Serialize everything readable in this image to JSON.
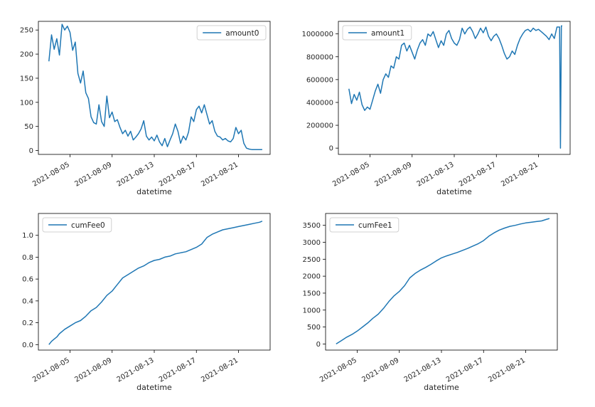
{
  "figure": {
    "background": "#ffffff",
    "line_color": "#1f77b4"
  },
  "chart_data": [
    {
      "type": "line",
      "title": "",
      "xlabel": "datetime",
      "ylabel": "",
      "x_ticks": [
        "2021-08-05",
        "2021-08-09",
        "2021-08-13",
        "2021-08-17",
        "2021-08-21"
      ],
      "x_range": [
        "2021-08-02",
        "2021-08-24"
      ],
      "ylim": [
        -8,
        268
      ],
      "y_ticks": [
        0,
        50,
        100,
        150,
        200,
        250
      ],
      "y_tick_labels": [
        "0",
        "50",
        "100",
        "150",
        "200",
        "250"
      ],
      "legend": {
        "position": "top-right",
        "entries": [
          "amount0"
        ]
      },
      "grid": false,
      "series": [
        {
          "name": "amount0",
          "x": [
            "2021-08-03",
            "2021-08-03T06",
            "2021-08-03T12",
            "2021-08-03T18",
            "2021-08-04",
            "2021-08-04T06",
            "2021-08-04T12",
            "2021-08-04T18",
            "2021-08-05",
            "2021-08-05T06",
            "2021-08-05T12",
            "2021-08-05T18",
            "2021-08-06",
            "2021-08-06T06",
            "2021-08-06T12",
            "2021-08-06T18",
            "2021-08-07",
            "2021-08-07T06",
            "2021-08-07T12",
            "2021-08-07T18",
            "2021-08-08",
            "2021-08-08T06",
            "2021-08-08T12",
            "2021-08-08T18",
            "2021-08-09",
            "2021-08-09T06",
            "2021-08-09T12",
            "2021-08-09T18",
            "2021-08-10",
            "2021-08-10T06",
            "2021-08-10T12",
            "2021-08-10T18",
            "2021-08-11",
            "2021-08-11T06",
            "2021-08-11T12",
            "2021-08-11T18",
            "2021-08-12",
            "2021-08-12T06",
            "2021-08-12T12",
            "2021-08-12T18",
            "2021-08-13",
            "2021-08-13T06",
            "2021-08-13T12",
            "2021-08-13T18",
            "2021-08-14",
            "2021-08-14T06",
            "2021-08-14T12",
            "2021-08-14T18",
            "2021-08-15",
            "2021-08-15T06",
            "2021-08-15T12",
            "2021-08-15T18",
            "2021-08-16",
            "2021-08-16T06",
            "2021-08-16T12",
            "2021-08-16T18",
            "2021-08-17",
            "2021-08-17T06",
            "2021-08-17T12",
            "2021-08-17T18",
            "2021-08-18",
            "2021-08-18T06",
            "2021-08-18T12",
            "2021-08-18T18",
            "2021-08-19",
            "2021-08-19T06",
            "2021-08-19T12",
            "2021-08-19T18",
            "2021-08-20",
            "2021-08-20T06",
            "2021-08-20T12",
            "2021-08-20T18",
            "2021-08-21",
            "2021-08-21T06",
            "2021-08-21T12",
            "2021-08-21T18",
            "2021-08-22",
            "2021-08-22T06",
            "2021-08-22T12",
            "2021-08-22T18",
            "2021-08-23",
            "2021-08-23T06"
          ],
          "y": [
            185,
            240,
            210,
            232,
            198,
            262,
            250,
            258,
            245,
            208,
            225,
            160,
            140,
            165,
            120,
            108,
            70,
            58,
            55,
            95,
            60,
            50,
            113,
            68,
            80,
            60,
            64,
            48,
            35,
            42,
            30,
            40,
            22,
            28,
            35,
            45,
            62,
            30,
            22,
            28,
            20,
            32,
            18,
            10,
            25,
            8,
            22,
            35,
            55,
            40,
            15,
            30,
            22,
            38,
            70,
            60,
            85,
            92,
            78,
            95,
            75,
            55,
            62,
            40,
            30,
            28,
            22,
            25,
            20,
            18,
            25,
            48,
            35,
            42,
            15,
            5,
            3,
            2,
            2,
            2,
            2,
            2
          ]
        }
      ]
    },
    {
      "type": "line",
      "title": "",
      "xlabel": "datetime",
      "ylabel": "",
      "x_ticks": [
        "2021-08-05",
        "2021-08-09",
        "2021-08-13",
        "2021-08-17",
        "2021-08-21"
      ],
      "x_range": [
        "2021-08-02",
        "2021-08-24"
      ],
      "ylim": [
        -55000,
        1110000
      ],
      "y_ticks": [
        0,
        200000,
        400000,
        600000,
        800000,
        1000000
      ],
      "y_tick_labels": [
        "0",
        "200000",
        "400000",
        "600000",
        "800000",
        "1000000"
      ],
      "legend": {
        "position": "top-left",
        "entries": [
          "amount1"
        ]
      },
      "grid": false,
      "series": [
        {
          "name": "amount1",
          "x": [
            "2021-08-03",
            "2021-08-03T06",
            "2021-08-03T12",
            "2021-08-03T18",
            "2021-08-04",
            "2021-08-04T06",
            "2021-08-04T12",
            "2021-08-04T18",
            "2021-08-05",
            "2021-08-05T06",
            "2021-08-05T12",
            "2021-08-05T18",
            "2021-08-06",
            "2021-08-06T06",
            "2021-08-06T12",
            "2021-08-06T18",
            "2021-08-07",
            "2021-08-07T06",
            "2021-08-07T12",
            "2021-08-07T18",
            "2021-08-08",
            "2021-08-08T06",
            "2021-08-08T12",
            "2021-08-08T18",
            "2021-08-09",
            "2021-08-09T06",
            "2021-08-09T12",
            "2021-08-09T18",
            "2021-08-10",
            "2021-08-10T06",
            "2021-08-10T12",
            "2021-08-10T18",
            "2021-08-11",
            "2021-08-11T06",
            "2021-08-11T12",
            "2021-08-11T18",
            "2021-08-12",
            "2021-08-12T06",
            "2021-08-12T12",
            "2021-08-12T18",
            "2021-08-13",
            "2021-08-13T06",
            "2021-08-13T12",
            "2021-08-13T18",
            "2021-08-14",
            "2021-08-14T06",
            "2021-08-14T12",
            "2021-08-14T18",
            "2021-08-15",
            "2021-08-15T06",
            "2021-08-15T12",
            "2021-08-15T18",
            "2021-08-16",
            "2021-08-16T06",
            "2021-08-16T12",
            "2021-08-16T18",
            "2021-08-17",
            "2021-08-17T06",
            "2021-08-17T12",
            "2021-08-17T18",
            "2021-08-18",
            "2021-08-18T06",
            "2021-08-18T12",
            "2021-08-18T18",
            "2021-08-19",
            "2021-08-19T06",
            "2021-08-19T12",
            "2021-08-19T18",
            "2021-08-20",
            "2021-08-20T06",
            "2021-08-20T12",
            "2021-08-20T18",
            "2021-08-21",
            "2021-08-21T06",
            "2021-08-21T12",
            "2021-08-21T18",
            "2021-08-22",
            "2021-08-22T06",
            "2021-08-22T12",
            "2021-08-22T18",
            "2021-08-23",
            "2021-08-23T02",
            "2021-08-23T04",
            "2021-08-23T05",
            "2021-08-23T06"
          ],
          "y": [
            520000,
            390000,
            470000,
            420000,
            490000,
            380000,
            330000,
            360000,
            340000,
            420000,
            500000,
            560000,
            480000,
            600000,
            650000,
            620000,
            720000,
            700000,
            800000,
            780000,
            900000,
            920000,
            850000,
            900000,
            840000,
            780000,
            860000,
            920000,
            950000,
            900000,
            1000000,
            980000,
            1020000,
            950000,
            880000,
            940000,
            900000,
            1000000,
            1030000,
            960000,
            920000,
            900000,
            950000,
            1050000,
            1000000,
            1040000,
            1060000,
            1020000,
            960000,
            1000000,
            1050000,
            1010000,
            1060000,
            980000,
            940000,
            980000,
            1000000,
            960000,
            900000,
            830000,
            780000,
            800000,
            850000,
            820000,
            900000,
            960000,
            1000000,
            1030000,
            1040000,
            1020000,
            1050000,
            1030000,
            1040000,
            1020000,
            1000000,
            980000,
            950000,
            1000000,
            960000,
            1060000,
            1060000,
            0,
            1070000,
            1070000,
            1070000
          ]
        }
      ]
    },
    {
      "type": "line",
      "title": "",
      "xlabel": "datetime",
      "ylabel": "",
      "x_ticks": [
        "2021-08-05",
        "2021-08-09",
        "2021-08-13",
        "2021-08-17",
        "2021-08-21"
      ],
      "x_range": [
        "2021-08-02",
        "2021-08-24"
      ],
      "ylim": [
        -0.05,
        1.2
      ],
      "y_ticks": [
        0.0,
        0.2,
        0.4,
        0.6,
        0.8,
        1.0
      ],
      "y_tick_labels": [
        "0.0",
        "0.2",
        "0.4",
        "0.6",
        "0.8",
        "1.0"
      ],
      "legend": {
        "position": "top-left",
        "entries": [
          "cumFee0"
        ]
      },
      "grid": false,
      "series": [
        {
          "name": "cumFee0",
          "x": [
            "2021-08-03",
            "2021-08-03T06",
            "2021-08-03T12",
            "2021-08-03T18",
            "2021-08-04",
            "2021-08-04T12",
            "2021-08-05",
            "2021-08-05T12",
            "2021-08-06",
            "2021-08-06T12",
            "2021-08-07",
            "2021-08-07T12",
            "2021-08-08",
            "2021-08-08T12",
            "2021-08-09",
            "2021-08-09T12",
            "2021-08-10",
            "2021-08-10T12",
            "2021-08-11",
            "2021-08-11T12",
            "2021-08-12",
            "2021-08-12T12",
            "2021-08-13",
            "2021-08-13T12",
            "2021-08-14",
            "2021-08-14T12",
            "2021-08-15",
            "2021-08-15T12",
            "2021-08-16",
            "2021-08-16T12",
            "2021-08-17",
            "2021-08-17T12",
            "2021-08-18",
            "2021-08-18T12",
            "2021-08-19",
            "2021-08-19T12",
            "2021-08-20",
            "2021-08-20T12",
            "2021-08-21",
            "2021-08-21T12",
            "2021-08-22",
            "2021-08-22T12",
            "2021-08-23",
            "2021-08-23T06"
          ],
          "y": [
            0.0,
            0.03,
            0.05,
            0.07,
            0.1,
            0.14,
            0.17,
            0.2,
            0.22,
            0.26,
            0.31,
            0.34,
            0.39,
            0.45,
            0.49,
            0.55,
            0.61,
            0.64,
            0.67,
            0.7,
            0.72,
            0.75,
            0.77,
            0.78,
            0.8,
            0.81,
            0.83,
            0.84,
            0.85,
            0.87,
            0.89,
            0.92,
            0.98,
            1.01,
            1.03,
            1.05,
            1.06,
            1.07,
            1.08,
            1.09,
            1.1,
            1.11,
            1.12,
            1.13
          ]
        }
      ]
    },
    {
      "type": "line",
      "title": "",
      "xlabel": "datetime",
      "ylabel": "",
      "x_ticks": [
        "2021-08-05",
        "2021-08-09",
        "2021-08-13",
        "2021-08-17",
        "2021-08-21"
      ],
      "x_range": [
        "2021-08-02",
        "2021-08-24"
      ],
      "ylim": [
        -180,
        3850
      ],
      "y_ticks": [
        0,
        500,
        1000,
        1500,
        2000,
        2500,
        3000,
        3500
      ],
      "y_tick_labels": [
        "0",
        "500",
        "1000",
        "1500",
        "2000",
        "2500",
        "3000",
        "3500"
      ],
      "legend": {
        "position": "top-left",
        "entries": [
          "cumFee1"
        ]
      },
      "grid": false,
      "series": [
        {
          "name": "cumFee1",
          "x": [
            "2021-08-03",
            "2021-08-03T12",
            "2021-08-04",
            "2021-08-04T12",
            "2021-08-05",
            "2021-08-05T12",
            "2021-08-06",
            "2021-08-06T12",
            "2021-08-07",
            "2021-08-07T12",
            "2021-08-08",
            "2021-08-08T12",
            "2021-08-09",
            "2021-08-09T12",
            "2021-08-10",
            "2021-08-10T12",
            "2021-08-11",
            "2021-08-11T12",
            "2021-08-12",
            "2021-08-12T12",
            "2021-08-13",
            "2021-08-13T12",
            "2021-08-14",
            "2021-08-14T12",
            "2021-08-15",
            "2021-08-15T12",
            "2021-08-16",
            "2021-08-16T12",
            "2021-08-17",
            "2021-08-17T12",
            "2021-08-18",
            "2021-08-18T12",
            "2021-08-19",
            "2021-08-19T12",
            "2021-08-20",
            "2021-08-20T12",
            "2021-08-21",
            "2021-08-21T12",
            "2021-08-22",
            "2021-08-22T12",
            "2021-08-23",
            "2021-08-23T06"
          ],
          "y": [
            0,
            100,
            200,
            280,
            380,
            500,
            620,
            760,
            880,
            1050,
            1250,
            1420,
            1550,
            1720,
            1950,
            2080,
            2180,
            2260,
            2350,
            2450,
            2540,
            2600,
            2650,
            2700,
            2760,
            2820,
            2890,
            2960,
            3050,
            3180,
            3280,
            3360,
            3420,
            3470,
            3500,
            3540,
            3570,
            3590,
            3610,
            3630,
            3680,
            3700
          ]
        }
      ]
    }
  ]
}
